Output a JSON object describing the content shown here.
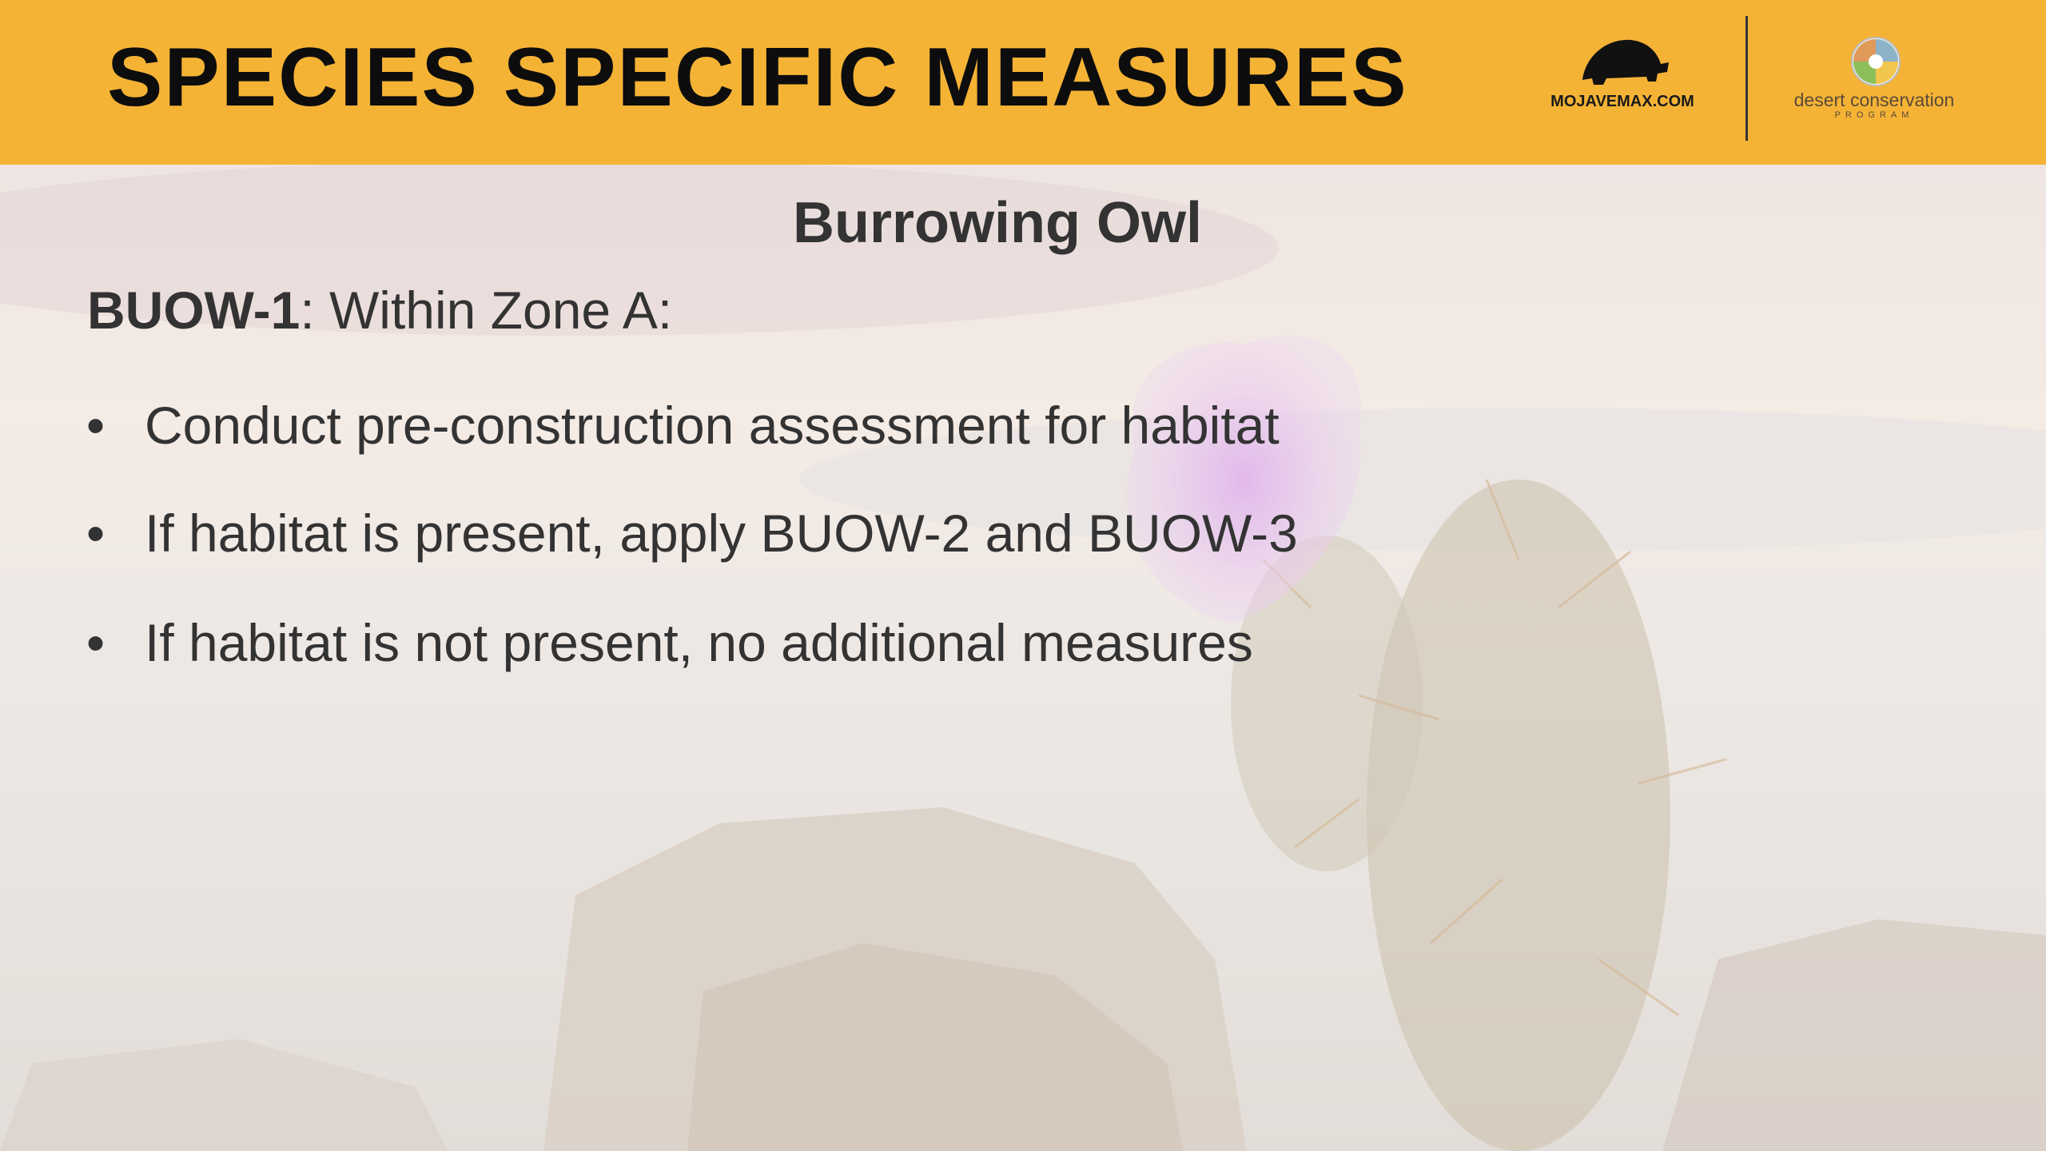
{
  "header": {
    "title": "SPECIES SPECIFIC MEASURES",
    "logo_left": "MOJAVEMAX.COM",
    "logo_right": "desert conservation",
    "logo_right_sub": "PROGRAM"
  },
  "content": {
    "heading": "Burrowing Owl",
    "intro": {
      "label": "BUOW-1",
      "text": ": Within Zone A:"
    },
    "bullets": [
      "Conduct pre-construction assessment for habitat",
      "If habitat is present, apply BUOW-2 and BUOW-3",
      "If habitat is not present, no additional measures"
    ]
  }
}
